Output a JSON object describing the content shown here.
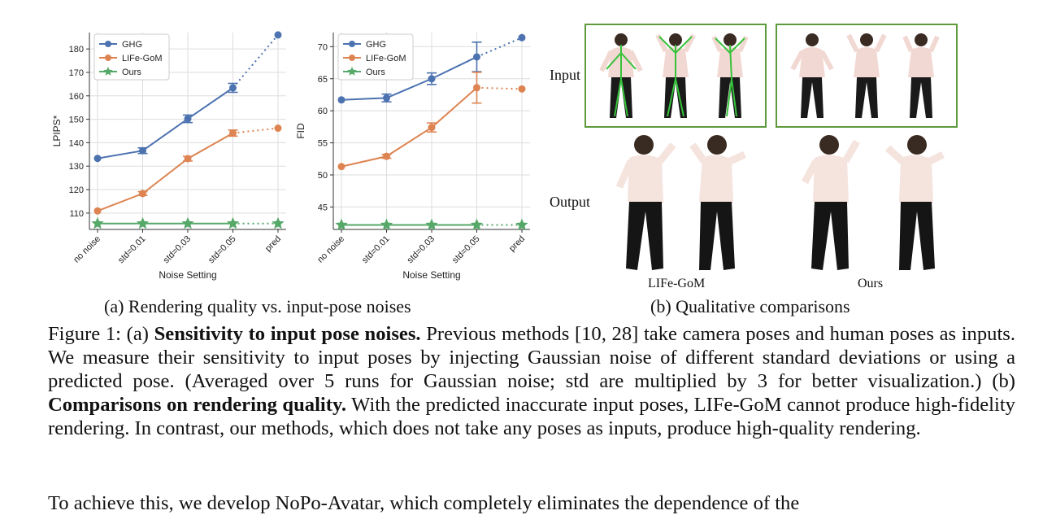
{
  "chart_data": [
    {
      "type": "line",
      "xlabel": "Noise Setting",
      "ylabel": "LPIPS*",
      "categories": [
        "no noise",
        "std=0.01",
        "std=0.03",
        "std=0.05",
        "pred"
      ],
      "ylim": [
        103,
        187
      ],
      "yticks": [
        110,
        120,
        130,
        140,
        150,
        160,
        170,
        180
      ],
      "legend_position": "top-left",
      "grid": true,
      "series": [
        {
          "name": "GHG",
          "color": "#4c72b0",
          "values": [
            133.3,
            136.6,
            150.2,
            163.4,
            186.0
          ],
          "error": [
            0,
            1.2,
            1.6,
            1.9,
            0
          ],
          "dotted_last": true
        },
        {
          "name": "LIFe-GoM",
          "color": "#dd8452",
          "values": [
            110.9,
            118.3,
            133.2,
            144.1,
            146.2
          ],
          "error": [
            0,
            0.8,
            1.0,
            1.3,
            0
          ],
          "dotted_last": true
        },
        {
          "name": "Ours",
          "color": "#55a868",
          "values": [
            105.5,
            105.5,
            105.5,
            105.5,
            105.5
          ],
          "error": [
            0,
            0,
            0,
            0,
            0
          ],
          "dotted_last": true
        }
      ]
    },
    {
      "type": "line",
      "xlabel": "Noise Setting",
      "ylabel": "FID",
      "categories": [
        "no noise",
        "std=0.01",
        "std=0.03",
        "std=0.05",
        "pred"
      ],
      "ylim": [
        41.5,
        72.2
      ],
      "yticks": [
        45,
        50,
        55,
        60,
        65,
        70
      ],
      "legend_position": "top-left",
      "grid": true,
      "series": [
        {
          "name": "GHG",
          "color": "#4c72b0",
          "values": [
            61.7,
            62.0,
            65.0,
            68.4,
            71.4
          ],
          "error": [
            0,
            0.6,
            0.9,
            2.3,
            0
          ],
          "dotted_last": true
        },
        {
          "name": "LIFe-GoM",
          "color": "#dd8452",
          "values": [
            51.3,
            52.9,
            57.4,
            63.6,
            63.4
          ],
          "error": [
            0,
            0.3,
            0.7,
            2.4,
            0
          ],
          "dotted_last": true
        },
        {
          "name": "Ours",
          "color": "#55a868",
          "values": [
            42.2,
            42.2,
            42.2,
            42.2,
            42.2
          ],
          "error": [
            0,
            0,
            0,
            0,
            0
          ],
          "dotted_last": true
        }
      ]
    }
  ],
  "subcaptions": {
    "a": "(a) Rendering quality vs. input-pose noises",
    "b": "(b) Qualitative comparisons"
  },
  "figure_b": {
    "row_input": "Input",
    "row_output": "Output",
    "col_left": "LIFe-GoM",
    "col_right": "Ours"
  },
  "caption": {
    "prefix": "Figure 1: (a) ",
    "bold1": "Sensitivity to input pose noises.",
    "text1": " Previous methods [10, 28] take camera poses and human poses as inputs. We measure their sensitivity to input poses by injecting Gaussian noise of different standard deviations or using a predicted pose. (Averaged over 5 runs for Gaussian noise; std are multiplied by 3 for better visualization.) (b) ",
    "bold2": "Comparisons on rendering quality.",
    "text2": " With the predicted inaccurate input poses, LIFe-GoM cannot produce high-fidelity rendering. In contrast, our methods, which does not take any poses as inputs, produce high-quality rendering."
  },
  "next_paragraph": "To achieve this, we develop NoPo-Avatar, which completely eliminates the dependence of the"
}
